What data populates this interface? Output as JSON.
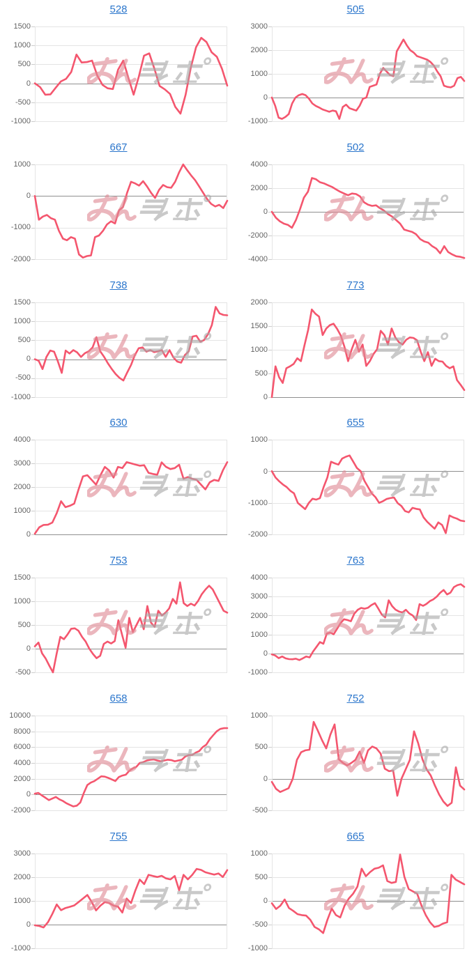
{
  "page": {
    "background": "#ffffff",
    "watermark": {
      "name": "minrepo-logo",
      "text_pink": "みん",
      "text_gray": "レポ"
    },
    "colors": {
      "line": "#f4566e",
      "title_link": "#2b76cc",
      "gridline": "#e4e4e4",
      "zero_line": "#8f8f8f",
      "tick": "#cccccc",
      "axis_label": "#646464",
      "watermark_pink": "#e08b95",
      "watermark_gray": "#a9a9a9"
    }
  },
  "chart_data": [
    {
      "type": "line",
      "title": "528",
      "ylim": [
        -1000,
        1500
      ],
      "yticks": [
        1500,
        1000,
        500,
        0,
        -500,
        -1000
      ],
      "values": [
        0,
        -100,
        -300,
        -290,
        -120,
        50,
        120,
        300,
        760,
        550,
        560,
        600,
        210,
        -40,
        -130,
        -150,
        360,
        600,
        140,
        -300,
        180,
        730,
        790,
        380,
        -70,
        -160,
        -280,
        -620,
        -800,
        -300,
        420,
        950,
        1200,
        1090,
        820,
        700,
        380,
        -60
      ]
    },
    {
      "type": "line",
      "title": "505",
      "ylim": [
        -1000,
        3000
      ],
      "yticks": [
        3000,
        2000,
        1000,
        0,
        -1000
      ],
      "values": [
        0,
        -350,
        -850,
        -900,
        -820,
        -700,
        -250,
        0,
        100,
        150,
        100,
        -50,
        -250,
        -350,
        -420,
        -500,
        -550,
        -600,
        -550,
        -580,
        -900,
        -400,
        -300,
        -450,
        -500,
        -550,
        -350,
        -50,
        0,
        450,
        500,
        550,
        1000,
        1250,
        1100,
        950,
        900,
        1950,
        2200,
        2450,
        2200,
        2000,
        1900,
        1750,
        1700,
        1650,
        1600,
        1500,
        1350,
        1100,
        900,
        500,
        450,
        430,
        500,
        820,
        870,
        700
      ]
    },
    {
      "type": "line",
      "title": "667",
      "ylim": [
        -2000,
        1000
      ],
      "yticks": [
        1000,
        0,
        -1000,
        -2000
      ],
      "values": [
        0,
        -750,
        -650,
        -600,
        -700,
        -750,
        -1100,
        -1350,
        -1400,
        -1300,
        -1350,
        -1850,
        -1950,
        -1900,
        -1880,
        -1300,
        -1250,
        -1100,
        -900,
        -800,
        -870,
        -450,
        -350,
        100,
        450,
        400,
        330,
        470,
        300,
        100,
        -60,
        200,
        350,
        280,
        260,
        450,
        750,
        1000,
        820,
        650,
        500,
        300,
        100,
        -100,
        -250,
        -330,
        -280,
        -380,
        -150
      ]
    },
    {
      "type": "line",
      "title": "502",
      "ylim": [
        -4000,
        4000
      ],
      "yticks": [
        4000,
        2000,
        0,
        -2000,
        -4000
      ],
      "values": [
        0,
        -500,
        -800,
        -1000,
        -1100,
        -1350,
        -700,
        200,
        1200,
        1700,
        2850,
        2750,
        2500,
        2400,
        2250,
        2100,
        1900,
        1700,
        1550,
        1400,
        1550,
        1500,
        1300,
        800,
        600,
        500,
        550,
        300,
        100,
        -200,
        -400,
        -700,
        -1000,
        -1500,
        -1600,
        -1700,
        -1900,
        -2300,
        -2500,
        -2600,
        -2900,
        -3100,
        -3500,
        -2900,
        -3400,
        -3600,
        -3750,
        -3800,
        -3900
      ]
    },
    {
      "type": "line",
      "title": "738",
      "ylim": [
        -1000,
        1500
      ],
      "yticks": [
        1500,
        1000,
        500,
        0,
        -500,
        -1000
      ],
      "values": [
        0,
        -40,
        -260,
        60,
        230,
        200,
        -60,
        -360,
        230,
        150,
        240,
        180,
        60,
        160,
        210,
        310,
        580,
        210,
        60,
        -110,
        -260,
        -390,
        -490,
        -560,
        -350,
        -150,
        110,
        290,
        310,
        200,
        240,
        190,
        210,
        240,
        60,
        240,
        50,
        -60,
        -90,
        110,
        210,
        600,
        620,
        460,
        510,
        660,
        900,
        1380,
        1210,
        1170,
        1160
      ]
    },
    {
      "type": "line",
      "title": "773",
      "ylim": [
        0,
        2000
      ],
      "yticks": [
        2000,
        1500,
        1000,
        500,
        0
      ],
      "values": [
        0,
        650,
        420,
        300,
        610,
        650,
        700,
        820,
        760,
        1100,
        1420,
        1850,
        1760,
        1700,
        1310,
        1450,
        1520,
        1550,
        1440,
        1300,
        1060,
        760,
        1010,
        1210,
        960,
        1110,
        660,
        760,
        910,
        1010,
        1400,
        1310,
        1110,
        1450,
        1260,
        1160,
        1110,
        1210,
        1260,
        1250,
        1200,
        960,
        760,
        950,
        660,
        810,
        760,
        750,
        660,
        610,
        650,
        360,
        260,
        150
      ]
    },
    {
      "type": "line",
      "title": "630",
      "ylim": [
        0,
        4000
      ],
      "yticks": [
        4000,
        3000,
        2000,
        1000,
        0
      ],
      "values": [
        30,
        300,
        400,
        410,
        500,
        900,
        1400,
        1150,
        1210,
        1300,
        1900,
        2450,
        2500,
        2300,
        2100,
        2500,
        2850,
        2700,
        2400,
        2850,
        2800,
        3050,
        3000,
        2950,
        2900,
        2920,
        2600,
        2550,
        2520,
        3040,
        2850,
        2760,
        2800,
        2940,
        2350,
        2420,
        2350,
        2300,
        2100,
        1900,
        2200,
        2300,
        2260,
        2700,
        3050
      ]
    },
    {
      "type": "line",
      "title": "655",
      "ylim": [
        -2000,
        1000
      ],
      "yticks": [
        1000,
        0,
        -1000,
        -2000
      ],
      "values": [
        0,
        -200,
        -320,
        -420,
        -500,
        -620,
        -700,
        -1000,
        -1100,
        -1200,
        -1000,
        -870,
        -900,
        -850,
        -500,
        -200,
        300,
        250,
        210,
        400,
        460,
        500,
        300,
        100,
        0,
        -300,
        -500,
        -700,
        -820,
        -1000,
        -950,
        -880,
        -850,
        -830,
        -1010,
        -1100,
        -1260,
        -1300,
        -1160,
        -1190,
        -1210,
        -1460,
        -1600,
        -1710,
        -1820,
        -1620,
        -1700,
        -1960,
        -1400,
        -1460,
        -1500,
        -1560,
        -1580
      ]
    },
    {
      "type": "line",
      "title": "753",
      "ylim": [
        -500,
        1500
      ],
      "yticks": [
        1500,
        1000,
        500,
        0,
        -500
      ],
      "values": [
        50,
        130,
        -100,
        -210,
        -360,
        -500,
        -110,
        250,
        200,
        300,
        420,
        430,
        380,
        250,
        150,
        0,
        -110,
        -200,
        -150,
        100,
        150,
        110,
        160,
        600,
        300,
        20,
        650,
        350,
        500,
        650,
        410,
        900,
        550,
        460,
        800,
        700,
        760,
        850,
        1050,
        950,
        1400,
        960,
        900,
        950,
        910,
        1010,
        1150,
        1250,
        1330,
        1250,
        1100,
        950,
        800,
        760
      ]
    },
    {
      "type": "line",
      "title": "763",
      "ylim": [
        -1000,
        4000
      ],
      "yticks": [
        4000,
        3000,
        2000,
        1000,
        0,
        -1000
      ],
      "values": [
        -50,
        -110,
        -250,
        -160,
        -260,
        -300,
        -310,
        -280,
        -350,
        -260,
        -160,
        -210,
        100,
        350,
        600,
        510,
        1050,
        1100,
        1010,
        1300,
        1600,
        1800,
        1760,
        1700,
        2100,
        2300,
        2400,
        2360,
        2410,
        2550,
        2650,
        2360,
        2050,
        1900,
        2800,
        2500,
        2310,
        2210,
        2160,
        2300,
        2110,
        2000,
        1760,
        2600,
        2510,
        2610,
        2760,
        2850,
        3000,
        3200,
        3350,
        3110,
        3210,
        3500,
        3600,
        3650,
        3510
      ]
    },
    {
      "type": "line",
      "title": "658",
      "ylim": [
        -2000,
        10000
      ],
      "yticks": [
        10000,
        8000,
        6000,
        4000,
        2000,
        0,
        -2000
      ],
      "values": [
        100,
        210,
        -110,
        -400,
        -700,
        -510,
        -310,
        -610,
        -810,
        -1100,
        -1310,
        -1510,
        -1410,
        -1010,
        210,
        1200,
        1510,
        1700,
        2000,
        2310,
        2260,
        2100,
        1910,
        1710,
        2210,
        2400,
        2510,
        3000,
        3310,
        3500,
        4000,
        4110,
        4310,
        4400,
        4450,
        4310,
        4210,
        4310,
        4410,
        4360,
        4210,
        4310,
        4410,
        4810,
        5000,
        5010,
        5310,
        5510,
        6010,
        6310,
        7000,
        7510,
        8010,
        8310,
        8400,
        8410
      ]
    },
    {
      "type": "line",
      "title": "752",
      "ylim": [
        -500,
        1000
      ],
      "yticks": [
        1000,
        500,
        0,
        -500
      ],
      "values": [
        -50,
        -160,
        -210,
        -180,
        -150,
        0,
        300,
        420,
        450,
        460,
        900,
        760,
        610,
        480,
        700,
        860,
        310,
        250,
        210,
        250,
        300,
        430,
        250,
        450,
        510,
        480,
        400,
        160,
        120,
        130,
        -270,
        0,
        150,
        300,
        750,
        560,
        310,
        150,
        50,
        -110,
        -250,
        -360,
        -430,
        -380,
        180,
        -110,
        -170
      ]
    },
    {
      "type": "line",
      "title": "755",
      "ylim": [
        -1000,
        3000
      ],
      "yticks": [
        3000,
        2000,
        1000,
        0,
        -1000
      ],
      "values": [
        -30,
        -60,
        -120,
        100,
        450,
        850,
        610,
        700,
        750,
        810,
        950,
        1100,
        1250,
        960,
        600,
        800,
        950,
        910,
        800,
        760,
        510,
        1100,
        910,
        1450,
        1900,
        1710,
        2100,
        2050,
        2010,
        2060,
        1950,
        1910,
        2050,
        1450,
        2100,
        1910,
        2100,
        2350,
        2310,
        2210,
        2160,
        2110,
        2160,
        2010,
        2300
      ]
    },
    {
      "type": "line",
      "title": "665",
      "ylim": [
        -1000,
        1000
      ],
      "yticks": [
        1000,
        500,
        0,
        -500,
        -1000
      ],
      "values": [
        -50,
        -170,
        -100,
        30,
        -150,
        -210,
        -280,
        -300,
        -310,
        -400,
        -550,
        -600,
        -680,
        -400,
        -160,
        -300,
        -350,
        -100,
        50,
        150,
        300,
        680,
        520,
        610,
        680,
        700,
        750,
        420,
        380,
        400,
        980,
        510,
        250,
        200,
        150,
        -100,
        -300,
        -450,
        -550,
        -530,
        -480,
        -450,
        550,
        450,
        400,
        350
      ]
    }
  ]
}
